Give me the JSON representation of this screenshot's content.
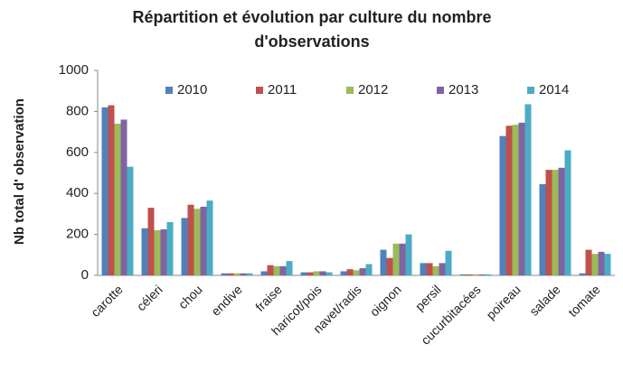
{
  "chart_data": {
    "type": "bar",
    "title": "Répartition et évolution par culture du nombre d'observations",
    "y_axis_label": "Nb total d' observation",
    "categories": [
      "carotte",
      "céleri",
      "chou",
      "endive",
      "fraise",
      "haricot/pois",
      "navet/radis",
      "oignon",
      "persil",
      "cucurbitacées",
      "poireau",
      "salade",
      "tomate"
    ],
    "series": [
      {
        "name": "2010",
        "color": "#4f81bd",
        "values": [
          820,
          230,
          280,
          10,
          20,
          15,
          20,
          125,
          60,
          5,
          680,
          445,
          10
        ]
      },
      {
        "name": "2011",
        "color": "#c0504d",
        "values": [
          830,
          330,
          345,
          10,
          50,
          15,
          30,
          85,
          60,
          5,
          730,
          515,
          125
        ]
      },
      {
        "name": "2012",
        "color": "#9bbb59",
        "values": [
          740,
          220,
          325,
          10,
          45,
          20,
          25,
          155,
          45,
          5,
          735,
          515,
          105
        ]
      },
      {
        "name": "2013",
        "color": "#8064a2",
        "values": [
          760,
          225,
          335,
          10,
          45,
          20,
          35,
          155,
          60,
          5,
          745,
          525,
          115
        ]
      },
      {
        "name": "2014",
        "color": "#4bacc6",
        "values": [
          530,
          260,
          365,
          10,
          70,
          15,
          55,
          200,
          120,
          5,
          835,
          610,
          105
        ]
      }
    ],
    "ylim": [
      0,
      1000
    ],
    "yticks": [
      0,
      200,
      400,
      600,
      800,
      1000
    ],
    "grid": false,
    "legend": "top"
  }
}
